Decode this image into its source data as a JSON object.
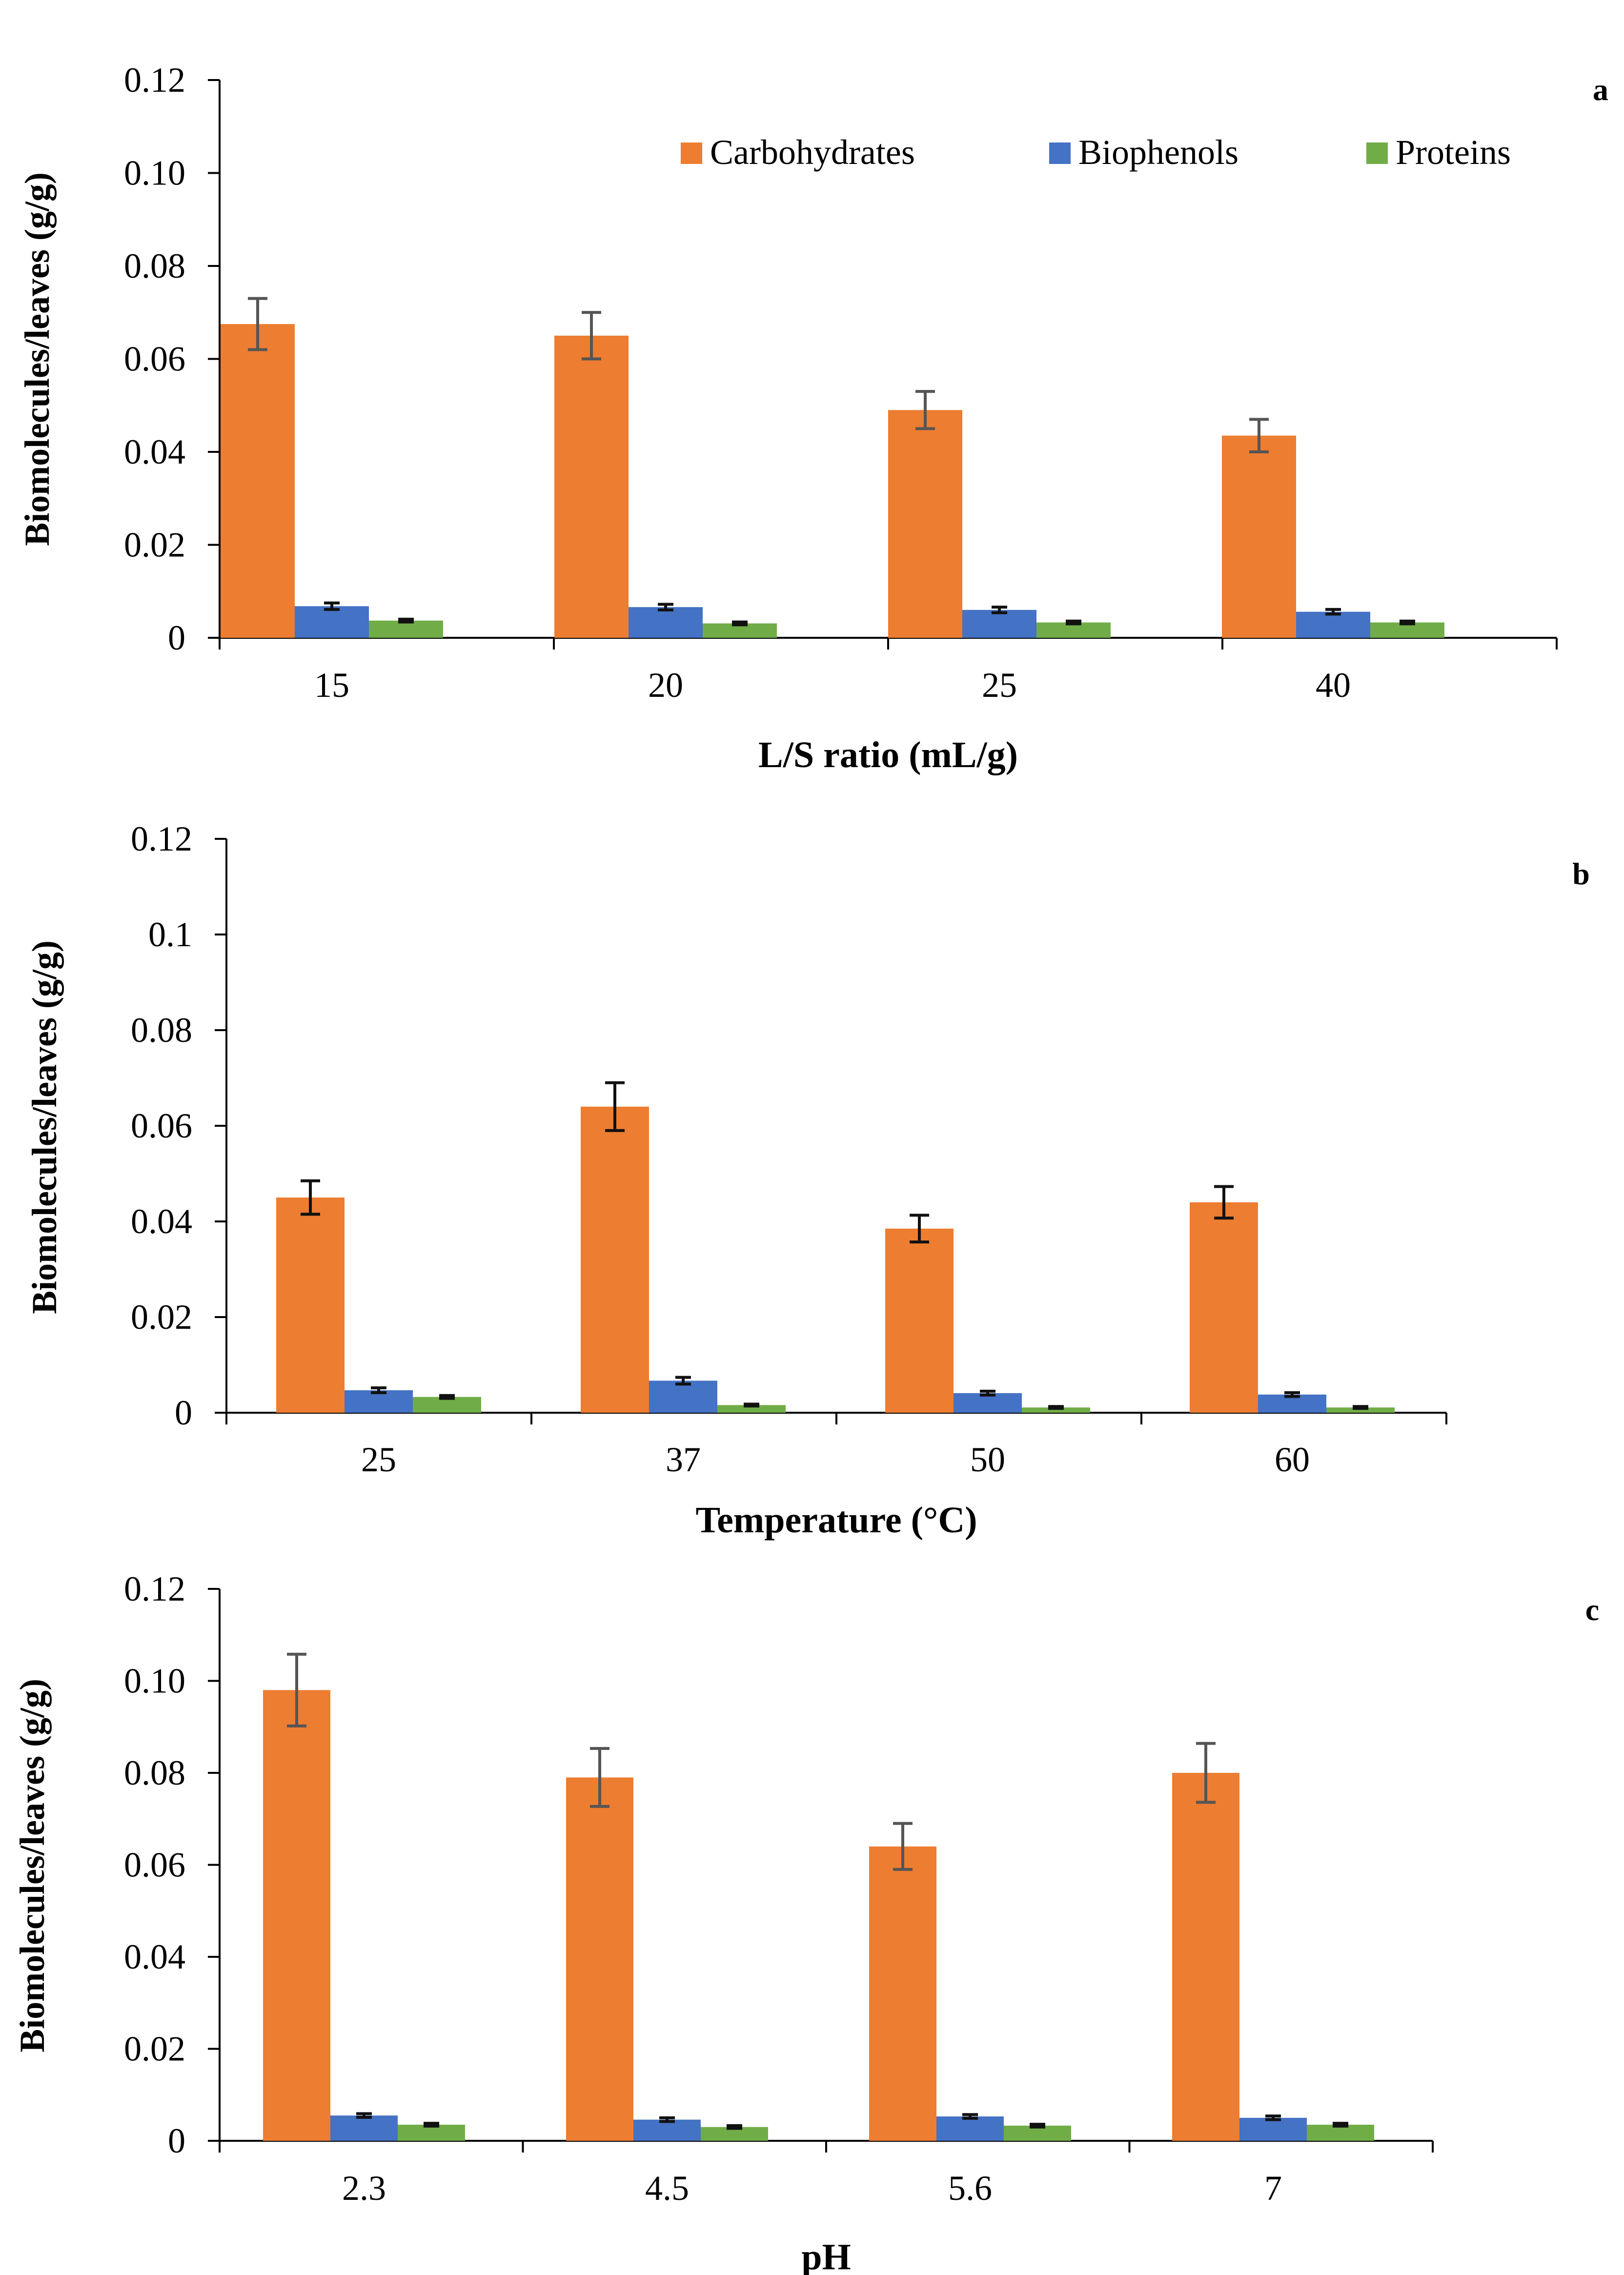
{
  "legend": {
    "carbohydrates": "Carbohydrates",
    "biophenols": "Biophenols",
    "proteins": "Proteins"
  },
  "colors": {
    "carbohydrates": "#ED7D31",
    "biophenols": "#4472C4",
    "proteins": "#70AD47"
  },
  "chart_data": [
    {
      "type": "bar",
      "panel": "a",
      "xlabel": "L/S ratio (mL/g)",
      "ylabel": "Biomolecules/leaves (g/g)",
      "categories": [
        "15",
        "20",
        "25",
        "40"
      ],
      "ylim": [
        0,
        0.12
      ],
      "yticks": [
        "0",
        "0.02",
        "0.04",
        "0.06",
        "0.08",
        "0.10",
        "0.12"
      ],
      "legend_position": "top-right",
      "grid": false,
      "series": [
        {
          "name": "Carbohydrates",
          "values": [
            0.0675,
            0.065,
            0.049,
            0.0435
          ],
          "errors": [
            0.0055,
            0.005,
            0.004,
            0.0035
          ]
        },
        {
          "name": "Biophenols",
          "values": [
            0.0068,
            0.0066,
            0.006,
            0.0056
          ],
          "errors": [
            0.0007,
            0.0006,
            0.0006,
            0.0005
          ]
        },
        {
          "name": "Proteins",
          "values": [
            0.0037,
            0.0031,
            0.0033,
            0.0033
          ],
          "errors": [
            0.0003,
            0.0003,
            0.0003,
            0.0003
          ]
        }
      ]
    },
    {
      "type": "bar",
      "panel": "b",
      "xlabel": "Temperature (°C)",
      "ylabel": "Biomolecules/leaves (g/g)",
      "categories": [
        "25",
        "37",
        "50",
        "60"
      ],
      "ylim": [
        0,
        0.12
      ],
      "yticks": [
        "0",
        "0.02",
        "0.04",
        "0.06",
        "0.08",
        "0.1",
        "0.12"
      ],
      "grid": false,
      "series": [
        {
          "name": "Carbohydrates",
          "values": [
            0.045,
            0.064,
            0.0385,
            0.044
          ],
          "errors": [
            0.0035,
            0.005,
            0.0028,
            0.0033
          ]
        },
        {
          "name": "Biophenols",
          "values": [
            0.0047,
            0.0067,
            0.0041,
            0.0038
          ],
          "errors": [
            0.0005,
            0.0007,
            0.0004,
            0.0004
          ]
        },
        {
          "name": "Proteins",
          "values": [
            0.0033,
            0.0016,
            0.0011,
            0.0011
          ],
          "errors": [
            0.0003,
            0.0002,
            0.0002,
            0.0002
          ]
        }
      ]
    },
    {
      "type": "bar",
      "panel": "c",
      "xlabel": "pH",
      "ylabel": "Biomolecules/leaves (g/g)",
      "categories": [
        "2.3",
        "4.5",
        "5.6",
        "7"
      ],
      "ylim": [
        0,
        0.12
      ],
      "yticks": [
        "0",
        "0.02",
        "0.04",
        "0.06",
        "0.08",
        "0.10",
        "0.12"
      ],
      "grid": false,
      "series": [
        {
          "name": "Carbohydrates",
          "values": [
            0.098,
            0.079,
            0.064,
            0.08
          ],
          "errors": [
            0.0078,
            0.0063,
            0.005,
            0.0064
          ]
        },
        {
          "name": "Biophenols",
          "values": [
            0.0055,
            0.0046,
            0.0053,
            0.005
          ],
          "errors": [
            0.0004,
            0.0004,
            0.0004,
            0.0004
          ]
        },
        {
          "name": "Proteins",
          "values": [
            0.0035,
            0.003,
            0.0033,
            0.0035
          ],
          "errors": [
            0.0003,
            0.0003,
            0.0003,
            0.0003
          ]
        }
      ]
    }
  ]
}
